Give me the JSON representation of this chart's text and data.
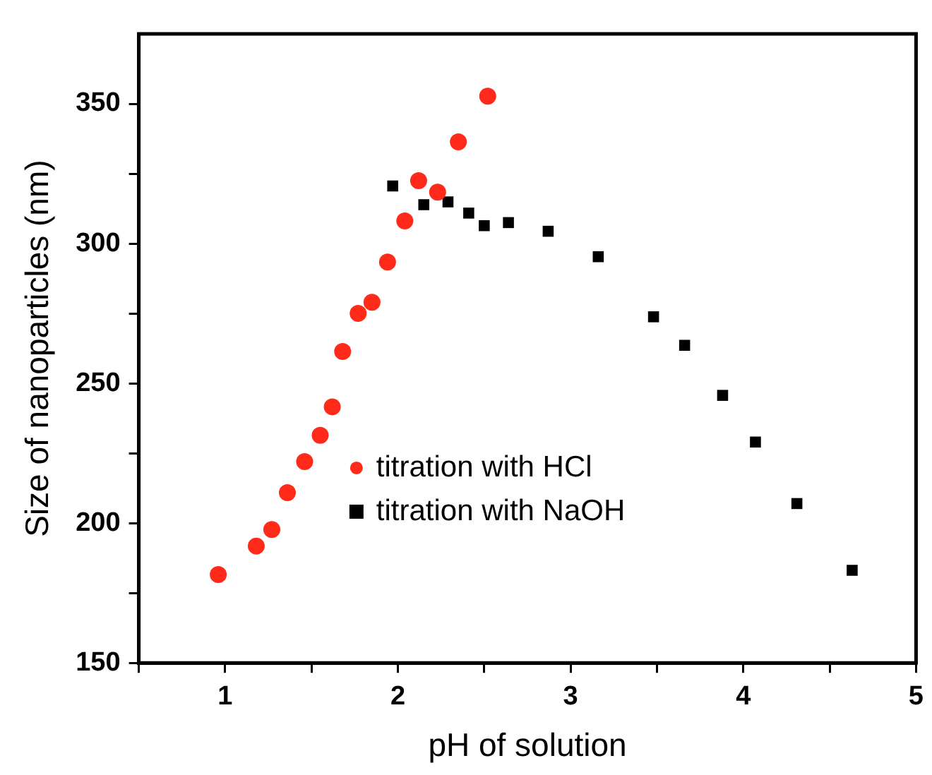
{
  "chart_data": {
    "type": "scatter",
    "xlabel": "pH of solution",
    "ylabel": "Size of nanoparticles (nm)",
    "xlim": [
      0.5,
      5
    ],
    "ylim": [
      150,
      375
    ],
    "xticks": [
      {
        "value": 0.5,
        "label": null
      },
      1,
      {
        "value": 1.5,
        "label": null
      },
      2,
      {
        "value": 2.5,
        "label": null
      },
      3,
      {
        "value": 3.5,
        "label": null
      },
      4,
      {
        "value": 4.5,
        "label": null
      },
      5
    ],
    "yticks": [
      150,
      {
        "value": 175,
        "label": null
      },
      200,
      {
        "value": 225,
        "label": null
      },
      250,
      {
        "value": 275,
        "label": null
      },
      300,
      {
        "value": 325,
        "label": null
      },
      350
    ],
    "legend": "center",
    "grid": false,
    "series": [
      {
        "name": "titration with HCl",
        "color": "#ff2a1a",
        "marker": "circle",
        "x": [
          0.96,
          1.18,
          1.27,
          1.36,
          1.46,
          1.55,
          1.62,
          1.68,
          1.77,
          1.85,
          1.94,
          2.04,
          2.12,
          2.23,
          2.35,
          2.52
        ],
        "values": [
          181.6,
          191.8,
          197.7,
          210.9,
          222.0,
          231.4,
          241.6,
          261.4,
          275.0,
          279.0,
          293.4,
          308.1,
          322.5,
          318.4,
          336.4,
          352.7
        ]
      },
      {
        "name": "titration with NaOH",
        "color": "#000000",
        "marker": "square",
        "x": [
          1.97,
          2.15,
          2.29,
          2.41,
          2.5,
          2.64,
          2.87,
          3.16,
          3.48,
          3.66,
          3.88,
          4.07,
          4.31,
          4.63
        ],
        "values": [
          320.6,
          313.9,
          314.9,
          310.9,
          306.4,
          307.5,
          304.4,
          295.3,
          273.8,
          263.6,
          245.7,
          229.0,
          207.0,
          183.1
        ]
      }
    ]
  }
}
